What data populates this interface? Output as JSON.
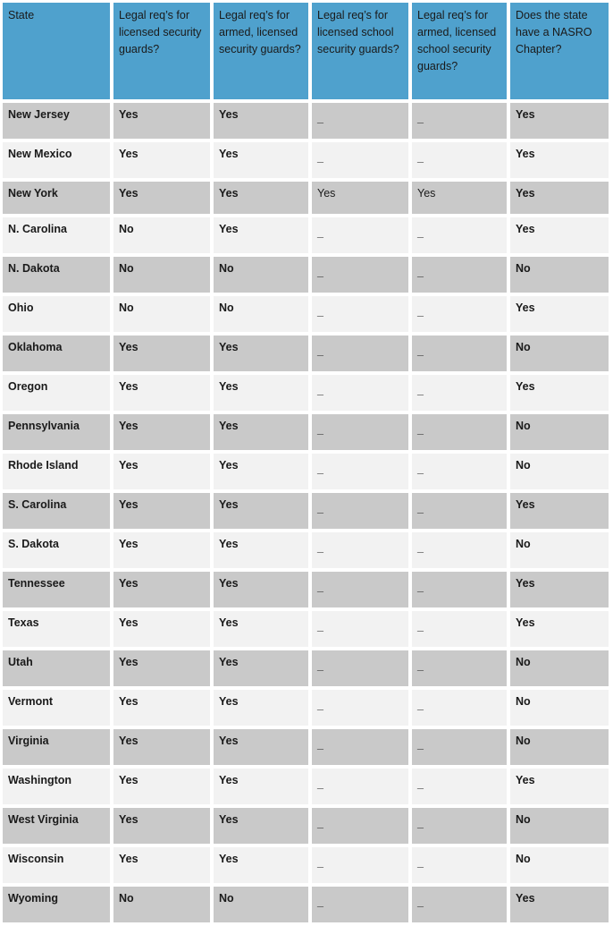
{
  "table": {
    "headers": [
      "State",
      "Legal req’s for licensed security guards?",
      "Legal req’s for armed, licensed security guards?",
      "Legal req’s for licensed school security guards?",
      "Legal req’s for armed, licensed school security guards?",
      "Does the state have a NASRO Chapter?"
    ],
    "rows": [
      [
        "New Jersey",
        "Yes",
        "Yes",
        "_",
        "_",
        "Yes"
      ],
      [
        "New Mexico",
        "Yes",
        "Yes",
        "_",
        "_",
        "Yes"
      ],
      [
        "New York",
        "Yes",
        "Yes",
        "Yes",
        "Yes",
        "Yes"
      ],
      [
        "N. Carolina",
        "No",
        "Yes",
        "_",
        "_",
        "Yes"
      ],
      [
        "N. Dakota",
        "No",
        "No",
        "_",
        "_",
        "No"
      ],
      [
        "Ohio",
        "No",
        "No",
        "_",
        "_",
        "Yes"
      ],
      [
        "Oklahoma",
        "Yes",
        "Yes",
        "_",
        "_",
        "No"
      ],
      [
        "Oregon",
        "Yes",
        "Yes",
        "_",
        "_",
        "Yes"
      ],
      [
        "Pennsylvania",
        "Yes",
        "Yes",
        "_",
        "_",
        "No"
      ],
      [
        "Rhode Island",
        "Yes",
        "Yes",
        "_",
        "_",
        "No"
      ],
      [
        "S. Carolina",
        "Yes",
        "Yes",
        "_",
        "_",
        "Yes"
      ],
      [
        "S. Dakota",
        "Yes",
        "Yes",
        "_",
        "_",
        "No"
      ],
      [
        "Tennessee",
        "Yes",
        "Yes",
        "_",
        "_",
        "Yes"
      ],
      [
        "Texas",
        "Yes",
        "Yes",
        "_",
        "_",
        "Yes"
      ],
      [
        "Utah",
        "Yes",
        "Yes",
        "_",
        "_",
        "No"
      ],
      [
        "Vermont",
        "Yes",
        "Yes",
        "_",
        "_",
        "No"
      ],
      [
        "Virginia",
        "Yes",
        "Yes",
        "_",
        "_",
        "No"
      ],
      [
        "Washington",
        "Yes",
        "Yes",
        "_",
        "_",
        "Yes"
      ],
      [
        "West Virginia",
        "Yes",
        "Yes",
        "_",
        "_",
        "No"
      ],
      [
        "Wisconsin",
        "Yes",
        "Yes",
        "_",
        "_",
        "No"
      ],
      [
        "Wyoming",
        "No",
        "No",
        "_",
        "_",
        "Yes"
      ]
    ]
  },
  "colors": {
    "header": "#4fa1cd",
    "row_odd": "#c9c9c9",
    "row_even": "#f2f2f2"
  }
}
